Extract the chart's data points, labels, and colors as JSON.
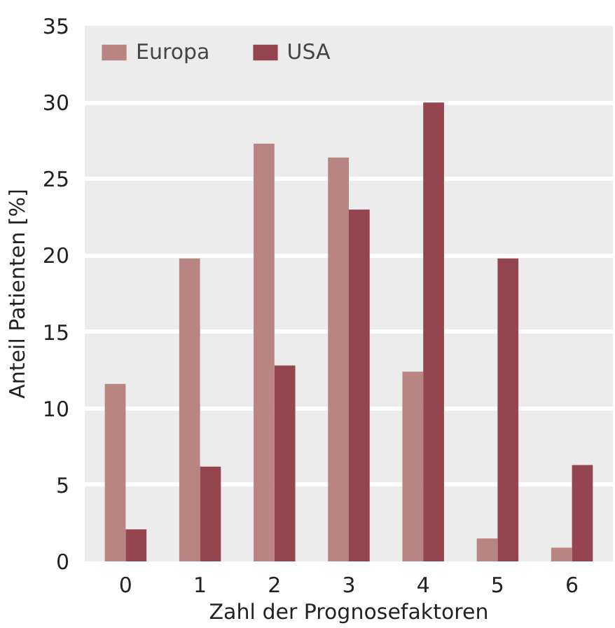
{
  "chart_data": {
    "type": "bar",
    "xlabel": "Zahl der Prognosefaktoren",
    "ylabel": "Anteil Patienten [%]",
    "categories": [
      "0",
      "1",
      "2",
      "3",
      "4",
      "5",
      "6"
    ],
    "series": [
      {
        "name": "Europa",
        "color": "#b88583",
        "values": [
          11.6,
          19.8,
          27.3,
          26.4,
          12.4,
          1.5,
          0.9
        ]
      },
      {
        "name": "USA",
        "color": "#944550",
        "values": [
          2.1,
          6.2,
          12.8,
          23.0,
          30.0,
          19.8,
          6.3
        ]
      }
    ],
    "ylim": [
      0,
      35
    ],
    "yticks": [
      0,
      5,
      10,
      15,
      20,
      25,
      30,
      35
    ],
    "grid": "y",
    "legend": "top left"
  }
}
